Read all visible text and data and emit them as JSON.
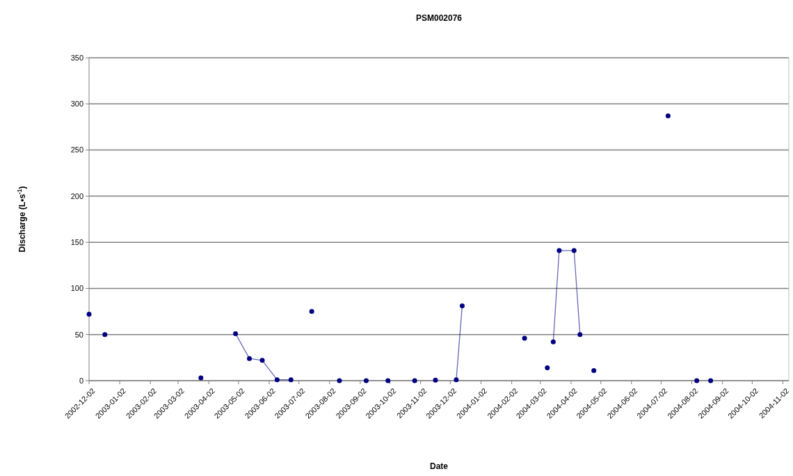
{
  "chart_data": {
    "type": "scatter",
    "title": "PSM002076",
    "xlabel": "Date",
    "ylabel": "Discharge (L•s$^{-1}$)",
    "xlim": [
      "2002-12-02",
      "2004-11-08"
    ],
    "xticks": [
      "2002-12-02",
      "2003-01-02",
      "2003-02-02",
      "2003-03-02",
      "2003-04-02",
      "2003-05-02",
      "2003-06-02",
      "2003-07-02",
      "2003-08-02",
      "2003-09-02",
      "2003-10-02",
      "2003-11-02",
      "2003-12-02",
      "2004-01-02",
      "2004-02-02",
      "2004-03-02",
      "2004-04-02",
      "2004-05-02",
      "2004-06-02",
      "2004-07-02",
      "2004-08-02",
      "2004-09-02",
      "2004-10-02",
      "2004-11-02"
    ],
    "ylim": [
      0,
      350
    ],
    "yticks": [
      0,
      50,
      100,
      150,
      200,
      250,
      300,
      350
    ],
    "grid": "y",
    "marker": "circle",
    "line_style": "solid",
    "series": [
      {
        "color": "#000080",
        "x": [
          "2002-12-02",
          "2002-12-18",
          "2003-03-25",
          "2003-07-15",
          "2003-08-12",
          "2003-09-08",
          "2003-09-30",
          "2003-10-27",
          "2003-11-17",
          "2004-02-15",
          "2004-03-09",
          "2004-04-25",
          "2004-07-09",
          "2004-08-07",
          "2004-08-21"
        ],
        "values": [
          72,
          50,
          3,
          75,
          0,
          0,
          0,
          0,
          0.5,
          46,
          14,
          11,
          287,
          0,
          0
        ]
      },
      {
        "type": "line",
        "color": "#000080",
        "x": [
          "2003-04-29",
          "2003-05-13",
          "2003-05-26",
          "2003-06-10",
          "2003-06-24"
        ],
        "values": [
          51,
          24,
          22,
          1,
          1
        ]
      },
      {
        "type": "line",
        "color": "#000080",
        "x": [
          "2003-12-08",
          "2003-12-14"
        ],
        "values": [
          1,
          81
        ]
      },
      {
        "type": "line",
        "color": "#000080",
        "x": [
          "2004-03-15",
          "2004-03-21",
          "2004-04-05",
          "2004-04-11"
        ],
        "values": [
          42,
          141,
          141,
          50
        ]
      }
    ]
  }
}
